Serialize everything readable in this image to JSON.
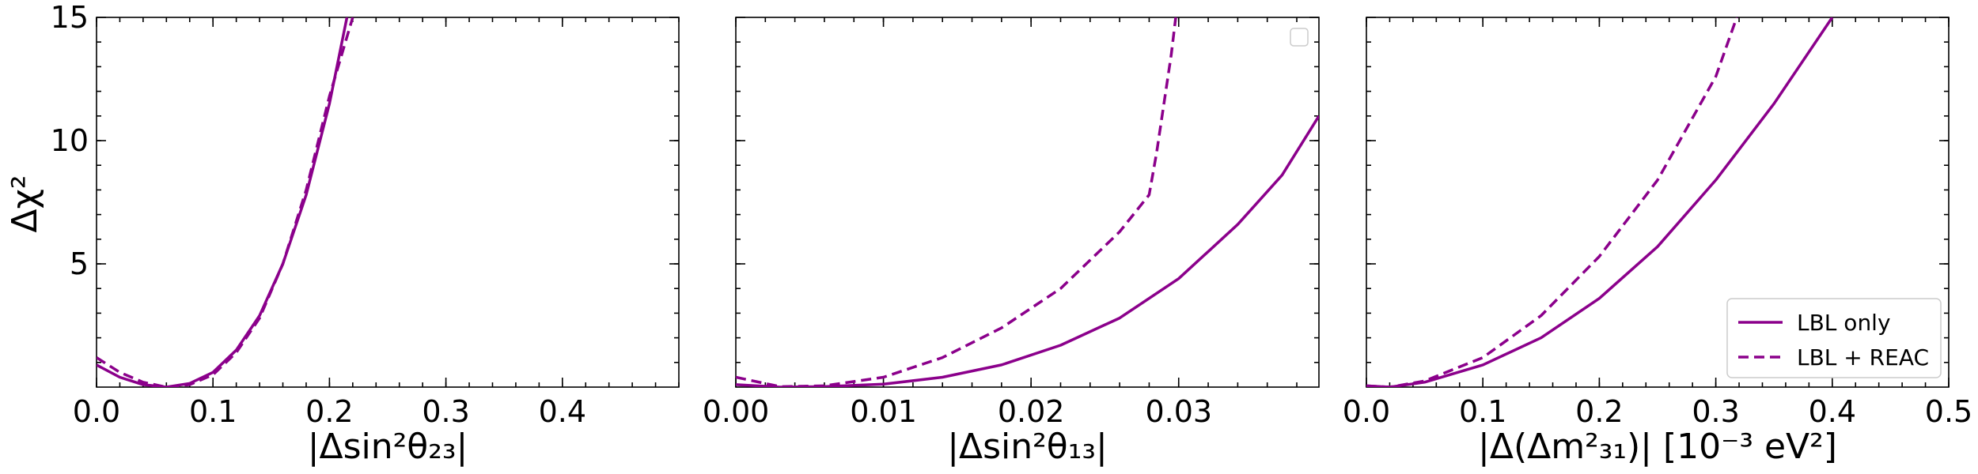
{
  "figure": {
    "line_color": "#8b008b"
  },
  "chart_data": [
    {
      "type": "line",
      "xlabel": "|Δsin²θ₂₃|",
      "ylabel": "Δχ²",
      "xlim": [
        0,
        0.5
      ],
      "ylim": [
        0,
        15
      ],
      "x_ticks": [
        "0.0",
        "0.1",
        "0.2",
        "0.3",
        "0.4"
      ],
      "x_tick_values": [
        0,
        0.1,
        0.2,
        0.3,
        0.4
      ],
      "y_ticks": [
        "5",
        "10",
        "15"
      ],
      "y_tick_values": [
        5,
        10,
        15
      ],
      "grid": false,
      "series": [
        {
          "name": "LBL only",
          "style": "solid",
          "x": [
            0,
            0.02,
            0.04,
            0.06,
            0.08,
            0.1,
            0.12,
            0.14,
            0.16,
            0.18,
            0.2,
            0.215
          ],
          "y": [
            0.9,
            0.4,
            0.1,
            0.0,
            0.15,
            0.6,
            1.5,
            2.9,
            5.0,
            7.8,
            11.5,
            15.0
          ]
        },
        {
          "name": "LBL + REAC",
          "style": "dashed",
          "x": [
            0,
            0.02,
            0.04,
            0.06,
            0.08,
            0.1,
            0.12,
            0.14,
            0.16,
            0.18,
            0.2,
            0.22
          ],
          "y": [
            1.2,
            0.6,
            0.2,
            0.0,
            0.1,
            0.5,
            1.4,
            2.8,
            5.0,
            8.0,
            11.8,
            15.0
          ]
        }
      ]
    },
    {
      "type": "line",
      "xlabel": "|Δsin²θ₁₃|",
      "ylabel": "",
      "xlim": [
        0,
        0.0395
      ],
      "ylim": [
        0,
        15
      ],
      "x_ticks": [
        "0.00",
        "0.01",
        "0.02",
        "0.03"
      ],
      "x_tick_values": [
        0,
        0.01,
        0.02,
        0.03
      ],
      "y_ticks": [],
      "y_tick_values": [
        5,
        10,
        15
      ],
      "grid": false,
      "series": [
        {
          "name": "LBL only",
          "style": "solid",
          "x": [
            0,
            0.003,
            0.006,
            0.01,
            0.014,
            0.018,
            0.022,
            0.026,
            0.03,
            0.034,
            0.037,
            0.0395
          ],
          "y": [
            0.1,
            0.0,
            0.02,
            0.12,
            0.4,
            0.9,
            1.7,
            2.8,
            4.4,
            6.6,
            8.6,
            11.0
          ]
        },
        {
          "name": "LBL + REAC",
          "style": "dashed",
          "x": [
            0,
            0.003,
            0.006,
            0.01,
            0.014,
            0.018,
            0.022,
            0.026,
            0.028,
            0.0285,
            0.029,
            0.0295,
            0.0298
          ],
          "y": [
            0.4,
            0.02,
            0.05,
            0.4,
            1.2,
            2.4,
            4.0,
            6.3,
            7.8,
            9.5,
            11.5,
            13.5,
            15.0
          ]
        }
      ],
      "legend": {
        "placement": "top-right",
        "entries": []
      }
    },
    {
      "type": "line",
      "xlabel": "|Δ(Δm²₃₁)| [10⁻³ eV²]",
      "ylabel": "",
      "xlim": [
        0,
        0.5
      ],
      "ylim": [
        0,
        15
      ],
      "x_ticks": [
        "0.0",
        "0.1",
        "0.2",
        "0.3",
        "0.4",
        "0.5"
      ],
      "x_tick_values": [
        0,
        0.1,
        0.2,
        0.3,
        0.4,
        0.5
      ],
      "y_ticks": [],
      "y_tick_values": [
        5,
        10,
        15
      ],
      "grid": false,
      "series": [
        {
          "name": "LBL only",
          "style": "solid",
          "x": [
            0,
            0.02,
            0.05,
            0.1,
            0.15,
            0.2,
            0.25,
            0.3,
            0.35,
            0.4
          ],
          "y": [
            0.05,
            0.0,
            0.2,
            0.9,
            2.0,
            3.6,
            5.7,
            8.4,
            11.5,
            15.0
          ]
        },
        {
          "name": "LBL + REAC",
          "style": "dashed",
          "x": [
            0,
            0.02,
            0.05,
            0.1,
            0.15,
            0.2,
            0.25,
            0.3,
            0.318
          ],
          "y": [
            0.05,
            0.0,
            0.25,
            1.2,
            2.9,
            5.3,
            8.4,
            12.6,
            15.0
          ]
        }
      ],
      "legend": {
        "placement": "bottom-right",
        "entries": [
          {
            "label": "LBL only",
            "style": "solid"
          },
          {
            "label": "LBL + REAC",
            "style": "dashed"
          }
        ]
      }
    }
  ]
}
